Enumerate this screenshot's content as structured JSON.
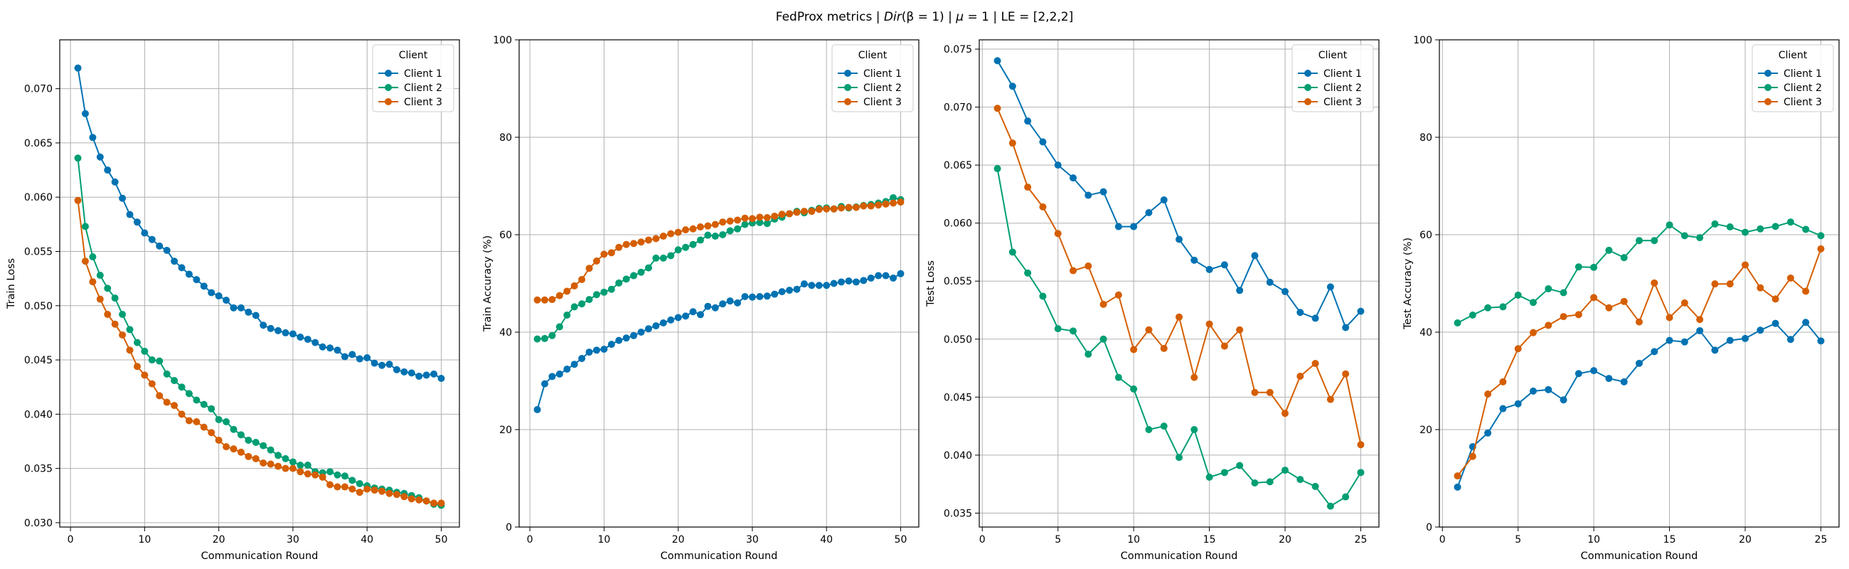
{
  "figure": {
    "title_prefix": "FedProx metrics | ",
    "title_math": "Dir",
    "title_math_rest": "(β = 1) | ",
    "title_mu": "μ",
    "title_mu_rest": " = 1 | LE = [2,2,2]"
  },
  "colors": {
    "client_1": "#0072b2",
    "client_2": "#009e73",
    "client_3": "#d55e00",
    "grid": "#b0b0b0"
  },
  "chart_data": [
    {
      "type": "line",
      "xlabel": "Communication Round",
      "ylabel": "Train Loss",
      "xlim": [
        -1.45,
        52.45
      ],
      "ylim": [
        0.0296,
        0.0745
      ],
      "xticks": [
        0,
        10,
        20,
        30,
        40,
        50
      ],
      "yticks": [
        0.03,
        0.035,
        0.04,
        0.045,
        0.05,
        0.055,
        0.06,
        0.065,
        0.07
      ],
      "ytick_decimals": 3,
      "grid": true,
      "legend": {
        "title": "Client",
        "placement": "top-right"
      },
      "x": [
        1,
        2,
        3,
        4,
        5,
        6,
        7,
        8,
        9,
        10,
        11,
        12,
        13,
        14,
        15,
        16,
        17,
        18,
        19,
        20,
        21,
        22,
        23,
        24,
        25,
        26,
        27,
        28,
        29,
        30,
        31,
        32,
        33,
        34,
        35,
        36,
        37,
        38,
        39,
        40,
        41,
        42,
        43,
        44,
        45,
        46,
        47,
        48,
        49,
        50
      ],
      "series": [
        {
          "name": "Client 1",
          "values": [
            0.0719,
            0.0677,
            0.0655,
            0.0637,
            0.0625,
            0.0614,
            0.0599,
            0.0584,
            0.0577,
            0.0567,
            0.0561,
            0.0555,
            0.0551,
            0.0541,
            0.0535,
            0.0529,
            0.0524,
            0.0518,
            0.0512,
            0.0509,
            0.0505,
            0.0498,
            0.0498,
            0.0494,
            0.0491,
            0.0482,
            0.0479,
            0.0477,
            0.0475,
            0.0474,
            0.0471,
            0.0469,
            0.0466,
            0.0462,
            0.0461,
            0.0459,
            0.0453,
            0.0455,
            0.0451,
            0.0452,
            0.0447,
            0.0445,
            0.0446,
            0.0441,
            0.0439,
            0.0438,
            0.0435,
            0.0436,
            0.0437,
            0.0433
          ]
        },
        {
          "name": "Client 2",
          "values": [
            0.0636,
            0.0573,
            0.0545,
            0.0528,
            0.0516,
            0.0507,
            0.0492,
            0.0478,
            0.0466,
            0.0458,
            0.045,
            0.0449,
            0.0437,
            0.0431,
            0.0425,
            0.0419,
            0.0413,
            0.0409,
            0.0405,
            0.0395,
            0.0393,
            0.0386,
            0.0381,
            0.0376,
            0.0374,
            0.0371,
            0.0367,
            0.0362,
            0.0359,
            0.0356,
            0.0353,
            0.0353,
            0.0347,
            0.0346,
            0.0347,
            0.0344,
            0.0343,
            0.0339,
            0.0336,
            0.0334,
            0.0332,
            0.0331,
            0.033,
            0.0328,
            0.0327,
            0.0325,
            0.0323,
            0.032,
            0.0317,
            0.0316
          ]
        },
        {
          "name": "Client 3",
          "values": [
            0.0597,
            0.0541,
            0.0522,
            0.0506,
            0.0492,
            0.0483,
            0.0473,
            0.0459,
            0.0444,
            0.0436,
            0.0428,
            0.0417,
            0.0411,
            0.0408,
            0.04,
            0.0394,
            0.0393,
            0.0388,
            0.0383,
            0.0376,
            0.037,
            0.0368,
            0.0365,
            0.0361,
            0.0359,
            0.0355,
            0.0354,
            0.0352,
            0.035,
            0.035,
            0.0347,
            0.0345,
            0.0344,
            0.0342,
            0.0335,
            0.0333,
            0.0333,
            0.0331,
            0.0328,
            0.0331,
            0.033,
            0.0329,
            0.0327,
            0.0326,
            0.0324,
            0.0322,
            0.0321,
            0.032,
            0.0318,
            0.0318
          ]
        }
      ]
    },
    {
      "type": "line",
      "xlabel": "Communication Round",
      "ylabel": "Train Accuracy (%)",
      "xlim": [
        -1.45,
        52.45
      ],
      "ylim": [
        0,
        100
      ],
      "xticks": [
        0,
        10,
        20,
        30,
        40,
        50
      ],
      "yticks": [
        0,
        20,
        40,
        60,
        80,
        100
      ],
      "ytick_decimals": 0,
      "grid": true,
      "legend": {
        "title": "Client",
        "placement": "top-right"
      },
      "x": [
        1,
        2,
        3,
        4,
        5,
        6,
        7,
        8,
        9,
        10,
        11,
        12,
        13,
        14,
        15,
        16,
        17,
        18,
        19,
        20,
        21,
        22,
        23,
        24,
        25,
        26,
        27,
        28,
        29,
        30,
        31,
        32,
        33,
        34,
        35,
        36,
        37,
        38,
        39,
        40,
        41,
        42,
        43,
        44,
        45,
        46,
        47,
        48,
        49,
        50
      ],
      "series": [
        {
          "name": "Client 1",
          "values": [
            24.1,
            29.4,
            30.9,
            31.4,
            32.4,
            33.4,
            34.6,
            35.9,
            36.3,
            36.5,
            37.5,
            38.3,
            38.8,
            39.3,
            40.0,
            40.7,
            41.3,
            41.9,
            42.5,
            43.0,
            43.3,
            44.2,
            43.6,
            45.3,
            45.0,
            45.8,
            46.4,
            46.0,
            47.3,
            47.2,
            47.3,
            47.4,
            47.8,
            48.3,
            48.6,
            48.8,
            49.9,
            49.6,
            49.6,
            49.6,
            50.0,
            50.3,
            50.5,
            50.3,
            50.6,
            51.1,
            51.6,
            51.6,
            51.1,
            52.0
          ]
        },
        {
          "name": "Client 2",
          "values": [
            38.6,
            38.7,
            39.3,
            41.1,
            43.5,
            45.2,
            45.8,
            46.7,
            47.7,
            48.2,
            48.8,
            50.1,
            50.9,
            51.6,
            52.3,
            53.2,
            55.2,
            55.2,
            55.7,
            56.9,
            57.4,
            58.0,
            58.9,
            59.9,
            59.7,
            60.0,
            60.8,
            61.2,
            62.1,
            62.4,
            62.5,
            62.3,
            63.2,
            63.6,
            64.3,
            64.8,
            64.5,
            65.0,
            65.4,
            65.5,
            65.3,
            65.8,
            65.5,
            65.7,
            66.0,
            66.2,
            66.5,
            66.8,
            67.6,
            67.2
          ]
        },
        {
          "name": "Client 3",
          "values": [
            46.6,
            46.6,
            46.7,
            47.5,
            48.4,
            49.5,
            50.8,
            53.1,
            54.6,
            56.0,
            56.3,
            57.4,
            58.0,
            58.2,
            58.5,
            58.9,
            59.2,
            59.7,
            60.2,
            60.5,
            61.0,
            61.2,
            61.6,
            61.8,
            62.1,
            62.6,
            62.8,
            63.0,
            63.4,
            63.3,
            63.6,
            63.5,
            63.8,
            64.2,
            64.3,
            64.6,
            64.8,
            64.8,
            65.2,
            65.3,
            65.3,
            65.5,
            65.6,
            65.6,
            65.9,
            65.9,
            66.1,
            66.3,
            66.5,
            66.7
          ]
        }
      ]
    },
    {
      "type": "line",
      "xlabel": "Communication Round",
      "ylabel": "Test Loss",
      "xlim": [
        -0.2,
        26.2
      ],
      "ylim": [
        0.0338,
        0.0758
      ],
      "xticks": [
        0,
        5,
        10,
        15,
        20,
        25
      ],
      "yticks": [
        0.035,
        0.04,
        0.045,
        0.05,
        0.055,
        0.06,
        0.065,
        0.07,
        0.075
      ],
      "ytick_decimals": 3,
      "grid": true,
      "legend": {
        "title": "Client",
        "placement": "top-right"
      },
      "x": [
        1,
        2,
        3,
        4,
        5,
        6,
        7,
        8,
        9,
        10,
        11,
        12,
        13,
        14,
        15,
        16,
        17,
        18,
        19,
        20,
        21,
        22,
        23,
        24,
        25
      ],
      "series": [
        {
          "name": "Client 1",
          "values": [
            0.074,
            0.0718,
            0.0688,
            0.067,
            0.065,
            0.0639,
            0.0624,
            0.0627,
            0.0597,
            0.0597,
            0.0609,
            0.062,
            0.0586,
            0.0568,
            0.056,
            0.0564,
            0.0542,
            0.0572,
            0.0549,
            0.0541,
            0.0523,
            0.0518,
            0.0545,
            0.051,
            0.0524
          ]
        },
        {
          "name": "Client 2",
          "values": [
            0.0647,
            0.0575,
            0.0557,
            0.0537,
            0.0509,
            0.0507,
            0.0487,
            0.05,
            0.0467,
            0.0457,
            0.0422,
            0.0425,
            0.0398,
            0.0422,
            0.0381,
            0.0385,
            0.0391,
            0.0376,
            0.0377,
            0.0387,
            0.0379,
            0.0373,
            0.0356,
            0.0364,
            0.0385
          ]
        },
        {
          "name": "Client 3",
          "values": [
            0.0699,
            0.0669,
            0.0631,
            0.0614,
            0.0591,
            0.0559,
            0.0563,
            0.053,
            0.0538,
            0.0491,
            0.0508,
            0.0492,
            0.0519,
            0.0467,
            0.0513,
            0.0494,
            0.0508,
            0.0454,
            0.0454,
            0.0436,
            0.0468,
            0.0479,
            0.0448,
            0.047,
            0.0409
          ]
        }
      ]
    },
    {
      "type": "line",
      "xlabel": "Communication Round",
      "ylabel": "Test Accuracy (%)",
      "xlim": [
        -0.2,
        26.2
      ],
      "ylim": [
        0,
        100
      ],
      "xticks": [
        0,
        5,
        10,
        15,
        20,
        25
      ],
      "yticks": [
        0,
        20,
        40,
        60,
        80,
        100
      ],
      "ytick_decimals": 0,
      "grid": true,
      "legend": {
        "title": "Client",
        "placement": "top-right"
      },
      "x": [
        1,
        2,
        3,
        4,
        5,
        6,
        7,
        8,
        9,
        10,
        11,
        12,
        13,
        14,
        15,
        16,
        17,
        18,
        19,
        20,
        21,
        22,
        23,
        24,
        25
      ],
      "series": [
        {
          "name": "Client 1",
          "values": [
            8.2,
            16.5,
            19.3,
            24.3,
            25.3,
            27.9,
            28.2,
            26.1,
            31.5,
            32.1,
            30.5,
            29.8,
            33.6,
            36.0,
            38.3,
            38.0,
            40.3,
            36.3,
            38.3,
            38.7,
            40.4,
            41.8,
            38.5,
            42.0,
            38.2
          ]
        },
        {
          "name": "Client 2",
          "values": [
            41.9,
            43.5,
            45.0,
            45.2,
            47.6,
            46.1,
            48.9,
            48.1,
            53.4,
            53.3,
            56.8,
            55.3,
            58.8,
            58.8,
            62.0,
            59.8,
            59.4,
            62.2,
            61.6,
            60.5,
            61.2,
            61.7,
            62.6,
            61.1,
            59.8
          ]
        },
        {
          "name": "Client 3",
          "values": [
            10.5,
            14.5,
            27.3,
            29.8,
            36.6,
            39.9,
            41.4,
            43.2,
            43.6,
            47.1,
            45.0,
            46.3,
            42.1,
            50.1,
            43.0,
            46.0,
            42.6,
            49.9,
            49.9,
            53.8,
            49.1,
            46.8,
            51.1,
            48.4,
            57.1
          ]
        }
      ]
    }
  ]
}
